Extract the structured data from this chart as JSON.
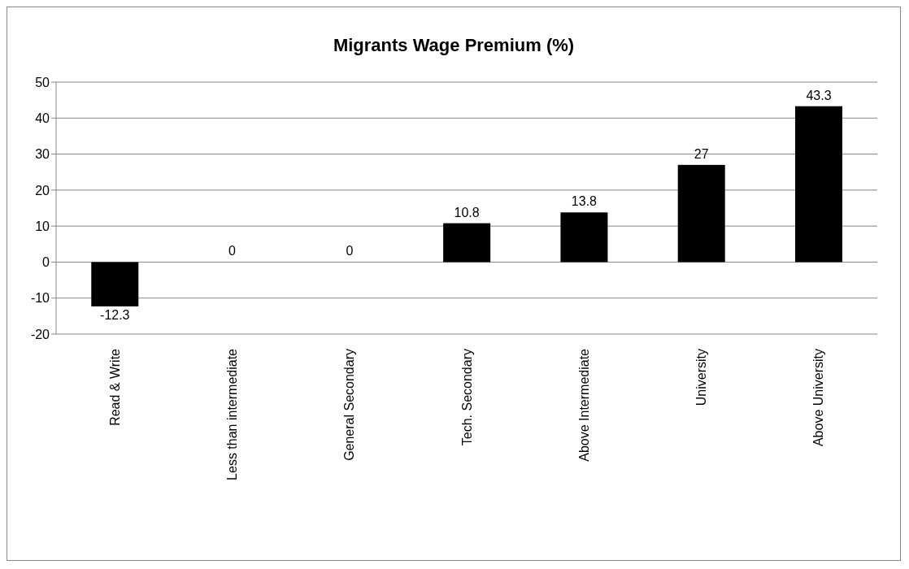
{
  "chart_data": {
    "type": "bar",
    "title": "Migrants Wage Premium (%)",
    "categories": [
      "Read & Write",
      "Less than intermediate",
      "General Secondary",
      "Tech. Secondary",
      "Above Intermediate",
      "University",
      "Above University"
    ],
    "values": [
      -12.3,
      0,
      0,
      10.8,
      13.8,
      27,
      43.3
    ],
    "color": "#000000",
    "ylim": [
      -20,
      50
    ],
    "yticks": [
      -20,
      -10,
      0,
      10,
      20,
      30,
      40,
      50
    ],
    "grid": "y",
    "data_labels": true
  }
}
